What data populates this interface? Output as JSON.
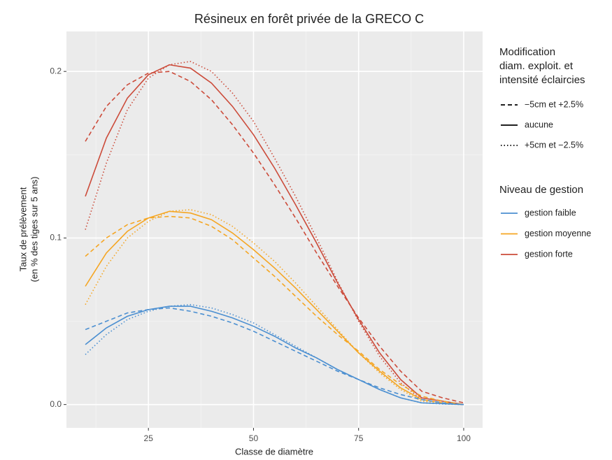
{
  "chart_data": {
    "type": "line",
    "title": "Résineux en forêt privée de la GRECO C",
    "x_label": "Classe de diamètre",
    "y_label": [
      "Taux de prélèvement",
      "(en % des tiges sur 5 ans)"
    ],
    "x": [
      10,
      15,
      20,
      25,
      30,
      35,
      40,
      45,
      50,
      55,
      60,
      65,
      70,
      75,
      80,
      85,
      90,
      95,
      100
    ],
    "xlim": [
      5.5,
      104.5
    ],
    "xticks": [
      25,
      50,
      75,
      100
    ],
    "minor_xticks": [
      12.5,
      37.5,
      62.5,
      87.5
    ],
    "ylim": [
      -0.014,
      0.224
    ],
    "yticks": [
      {
        "value": 0,
        "label": "0.0"
      },
      0.1,
      0.2
    ],
    "minor_yticks": [
      0.05,
      0.15
    ],
    "grid": true,
    "legend_linetype": {
      "title": [
        "Modification",
        "diam. exploit. et",
        "intensité éclaircies"
      ],
      "items": [
        {
          "label": "−5cm et +2.5%",
          "dash": "6 4"
        },
        {
          "label": "aucune",
          "dash": "none"
        },
        {
          "label": "+5cm et −2.5%",
          "dash": "1.5 3"
        }
      ]
    },
    "legend_color": {
      "title": "Niveau de gestion",
      "items": [
        {
          "label": "gestion faible",
          "color": "#4b8fd1"
        },
        {
          "label": "gestion moyenne",
          "color": "#f5a623"
        },
        {
          "label": "gestion forte",
          "color": "#cc4b3a"
        }
      ]
    },
    "series": [
      {
        "name": "gestion forte",
        "linetype": "aucune",
        "color": "#cc4b3a",
        "dash": "none",
        "values": [
          0.125,
          0.16,
          0.184,
          0.198,
          0.204,
          0.202,
          0.193,
          0.179,
          0.162,
          0.142,
          0.12,
          0.097,
          0.073,
          0.051,
          0.031,
          0.015,
          0.004,
          0.002,
          0.0
        ]
      },
      {
        "name": "gestion forte",
        "linetype": "−5cm et +2.5%",
        "color": "#cc4b3a",
        "dash": "6 4",
        "values": [
          0.158,
          0.179,
          0.192,
          0.199,
          0.2,
          0.194,
          0.183,
          0.168,
          0.151,
          0.132,
          0.112,
          0.091,
          0.071,
          0.052,
          0.035,
          0.02,
          0.008,
          0.004,
          0.001
        ]
      },
      {
        "name": "gestion forte",
        "linetype": "+5cm et −2.5%",
        "color": "#cc4b3a",
        "dash": "1.5 3",
        "values": [
          0.105,
          0.145,
          0.177,
          0.196,
          0.204,
          0.206,
          0.2,
          0.187,
          0.17,
          0.148,
          0.125,
          0.1,
          0.074,
          0.05,
          0.029,
          0.013,
          0.003,
          0.001,
          0.0
        ]
      },
      {
        "name": "gestion moyenne",
        "linetype": "aucune",
        "color": "#f5a623",
        "dash": "none",
        "values": [
          0.071,
          0.091,
          0.104,
          0.112,
          0.116,
          0.115,
          0.111,
          0.103,
          0.093,
          0.082,
          0.07,
          0.057,
          0.044,
          0.031,
          0.02,
          0.01,
          0.003,
          0.001,
          0.0
        ]
      },
      {
        "name": "gestion moyenne",
        "linetype": "−5cm et +2.5%",
        "color": "#f5a623",
        "dash": "6 4",
        "values": [
          0.089,
          0.1,
          0.108,
          0.112,
          0.113,
          0.112,
          0.107,
          0.099,
          0.088,
          0.077,
          0.065,
          0.053,
          0.042,
          0.032,
          0.021,
          0.012,
          0.005,
          0.002,
          0.0
        ]
      },
      {
        "name": "gestion moyenne",
        "linetype": "+5cm et −2.5%",
        "color": "#f5a623",
        "dash": "1.5 3",
        "values": [
          0.06,
          0.083,
          0.1,
          0.11,
          0.116,
          0.117,
          0.114,
          0.107,
          0.097,
          0.086,
          0.073,
          0.059,
          0.045,
          0.031,
          0.019,
          0.009,
          0.002,
          0.001,
          0.0
        ]
      },
      {
        "name": "gestion faible",
        "linetype": "aucune",
        "color": "#4b8fd1",
        "dash": "none",
        "values": [
          0.036,
          0.046,
          0.053,
          0.057,
          0.059,
          0.059,
          0.056,
          0.052,
          0.047,
          0.041,
          0.034,
          0.028,
          0.021,
          0.015,
          0.009,
          0.004,
          0.001,
          0.0005,
          0.0
        ]
      },
      {
        "name": "gestion faible",
        "linetype": "−5cm et +2.5%",
        "color": "#4b8fd1",
        "dash": "6 4",
        "values": [
          0.045,
          0.05,
          0.055,
          0.057,
          0.058,
          0.056,
          0.053,
          0.049,
          0.044,
          0.038,
          0.032,
          0.026,
          0.02,
          0.015,
          0.01,
          0.006,
          0.003,
          0.001,
          0.0
        ]
      },
      {
        "name": "gestion faible",
        "linetype": "+5cm et −2.5%",
        "color": "#4b8fd1",
        "dash": "1.5 3",
        "values": [
          0.03,
          0.042,
          0.051,
          0.056,
          0.059,
          0.06,
          0.058,
          0.054,
          0.049,
          0.042,
          0.035,
          0.028,
          0.021,
          0.015,
          0.009,
          0.004,
          0.001,
          0.0003,
          0.0
        ]
      }
    ]
  }
}
